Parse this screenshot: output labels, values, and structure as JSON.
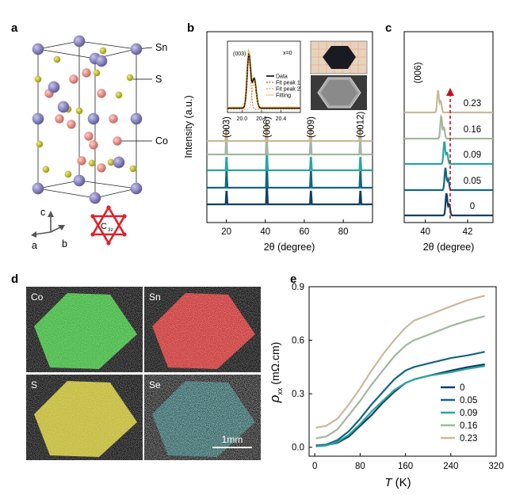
{
  "panel_labels": {
    "a": "a",
    "b": "b",
    "c": "c",
    "d": "d",
    "e": "e"
  },
  "panel_a": {
    "atom_labels": {
      "sn": "Sn",
      "s": "S",
      "co": "Co"
    },
    "axes": {
      "c": "c",
      "a": "a",
      "b": "b"
    },
    "symmetry": "C",
    "symmetry_sub": "3z",
    "colors": {
      "sn": "#7d79b4",
      "s": "#c7bf1c",
      "co": "#e58a86",
      "sym": "#e0202a"
    }
  },
  "chart_data": [
    {
      "id": "b",
      "type": "line",
      "xlabel": "2θ (degree)",
      "ylabel": "Intensity (a.u.)",
      "xlim": [
        10,
        95
      ],
      "xticks": [
        20,
        40,
        60,
        80
      ],
      "series": [
        {
          "name": "0",
          "color": "#0f3f66",
          "peaks": [
            20.1,
            40.8,
            63.4,
            88.8
          ]
        },
        {
          "name": "0.05",
          "color": "#11667f",
          "peaks": [
            20.1,
            40.8,
            63.4,
            88.8
          ]
        },
        {
          "name": "0.09",
          "color": "#2aa69e",
          "peaks": [
            20.1,
            40.8,
            63.4,
            88.8
          ]
        },
        {
          "name": "0.16",
          "color": "#a3b5a1",
          "peaks": [
            20.0,
            40.7,
            63.3,
            88.7
          ]
        },
        {
          "name": "0.23",
          "color": "#c9b99b",
          "peaks": [
            20.0,
            40.6,
            63.2,
            88.6
          ]
        }
      ],
      "peak_labels": [
        "(003)",
        "(006)",
        "(009)",
        "(0012)"
      ],
      "peak_label_x": [
        20,
        40.7,
        63.3,
        88.7
      ],
      "inset": {
        "type": "line",
        "xlim": [
          19.85,
          20.6
        ],
        "xticks": [
          20.0,
          20.2,
          20.4
        ],
        "label": "(003)",
        "note": "x=0",
        "legend": [
          "Data",
          "Fit peak 1",
          "Fit peak 2",
          "Fitting"
        ],
        "colors": {
          "data": "#000000",
          "fit1": "#c25a3a",
          "fit2": "#d99a3a",
          "fitting": "#e8c56a"
        }
      },
      "photo_colors": {
        "paper": "#e7d3bd",
        "grid": "#e89a70",
        "crystal": "#1a1a22",
        "sem": "#8a8a8a"
      }
    },
    {
      "id": "c",
      "type": "line",
      "xlabel": "2θ (degree)",
      "xlim": [
        39,
        43.2
      ],
      "xticks": [
        40,
        42
      ],
      "peak_label": "(006)",
      "series": [
        {
          "name": "0",
          "color": "#0f3f66",
          "center": 41.0
        },
        {
          "name": "0.05",
          "color": "#11667f",
          "center": 40.95
        },
        {
          "name": "0.09",
          "color": "#2aa69e",
          "center": 40.9
        },
        {
          "name": "0.16",
          "color": "#a3b5a1",
          "center": 40.75
        },
        {
          "name": "0.23",
          "color": "#c9b99b",
          "center": 40.6
        }
      ],
      "arrow_color": "#c0121b"
    },
    {
      "id": "e",
      "type": "line",
      "xlabel": "T (K)",
      "xlabel_italic": "T",
      "xlabel_unit": " (K)",
      "ylabel": "ρxx (mΩ.cm)",
      "ylabel_sym": "ρ",
      "ylabel_sub": "xx",
      "ylabel_unit": " (mΩ.cm)",
      "xlim": [
        -10,
        320
      ],
      "ylim": [
        -0.05,
        0.9
      ],
      "xticks": [
        0,
        80,
        160,
        240,
        320
      ],
      "yticks": [
        0.0,
        0.3,
        0.6,
        0.9
      ],
      "ytick_labels": [
        "0.0",
        "0.3",
        "0.6",
        "0.9"
      ],
      "legend_position": "bottom-right",
      "series": [
        {
          "name": "0",
          "color": "#0f3f66",
          "T": [
            2,
            20,
            40,
            60,
            80,
            100,
            120,
            140,
            160,
            175,
            200,
            240,
            270,
            300
          ],
          "rho": [
            0.01,
            0.012,
            0.025,
            0.06,
            0.12,
            0.18,
            0.25,
            0.31,
            0.36,
            0.38,
            0.4,
            0.43,
            0.45,
            0.465
          ]
        },
        {
          "name": "0.05",
          "color": "#11667f",
          "T": [
            2,
            20,
            40,
            60,
            80,
            100,
            120,
            140,
            160,
            175,
            200,
            240,
            270,
            300
          ],
          "rho": [
            0.01,
            0.015,
            0.04,
            0.09,
            0.16,
            0.24,
            0.31,
            0.38,
            0.43,
            0.45,
            0.47,
            0.5,
            0.515,
            0.535
          ]
        },
        {
          "name": "0.09",
          "color": "#2aa69e",
          "T": [
            2,
            20,
            40,
            60,
            80,
            100,
            120,
            140,
            160,
            175,
            200,
            240,
            270,
            300
          ],
          "rho": [
            0.005,
            0.01,
            0.03,
            0.07,
            0.13,
            0.2,
            0.26,
            0.32,
            0.36,
            0.38,
            0.4,
            0.42,
            0.44,
            0.455
          ]
        },
        {
          "name": "0.16",
          "color": "#a3b5a1",
          "T": [
            2,
            20,
            40,
            60,
            80,
            100,
            120,
            140,
            160,
            175,
            200,
            240,
            270,
            300
          ],
          "rho": [
            0.05,
            0.06,
            0.1,
            0.18,
            0.26,
            0.35,
            0.43,
            0.51,
            0.57,
            0.6,
            0.63,
            0.68,
            0.71,
            0.735
          ]
        },
        {
          "name": "0.23",
          "color": "#c9b99b",
          "T": [
            2,
            20,
            40,
            60,
            80,
            100,
            120,
            140,
            160,
            175,
            200,
            240,
            270,
            300
          ],
          "rho": [
            0.11,
            0.12,
            0.16,
            0.24,
            0.33,
            0.43,
            0.52,
            0.6,
            0.67,
            0.71,
            0.74,
            0.79,
            0.825,
            0.85
          ]
        }
      ]
    }
  ],
  "panel_d": {
    "maps": [
      {
        "label": "Co",
        "color": "#2fb82f"
      },
      {
        "label": "Sn",
        "color": "#d02525"
      },
      {
        "label": "S",
        "color": "#c5bb20"
      },
      {
        "label": "Se",
        "color": "#1f8a8c"
      }
    ],
    "scalebar": "1mm"
  }
}
